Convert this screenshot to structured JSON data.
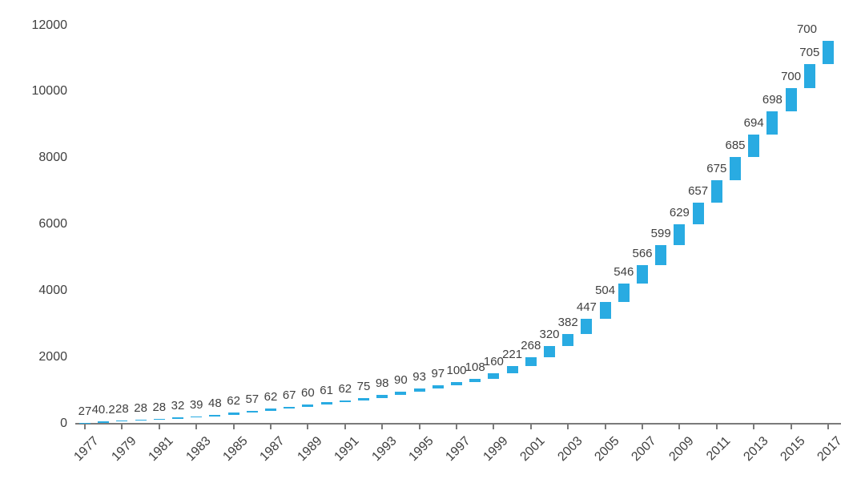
{
  "chart_data": {
    "type": "bar",
    "subtype": "waterfall-cumulative",
    "title": "",
    "xlabel": "",
    "ylabel": "",
    "years": [
      1977,
      1978,
      1979,
      1980,
      1981,
      1982,
      1983,
      1984,
      1985,
      1986,
      1987,
      1988,
      1989,
      1990,
      1991,
      1992,
      1993,
      1994,
      1995,
      1996,
      1997,
      1998,
      1999,
      2000,
      2001,
      2002,
      2003,
      2004,
      2005,
      2006,
      2007,
      2008,
      2009,
      2010,
      2011,
      2012,
      2013,
      2014,
      2015,
      2016,
      2017
    ],
    "values": [
      27,
      40.2,
      28,
      28,
      28,
      32,
      39,
      48,
      62,
      57,
      62,
      67,
      60,
      61,
      62,
      75,
      98,
      90,
      93,
      97,
      100,
      108,
      160,
      221,
      268,
      320,
      382,
      447,
      504,
      546,
      566,
      599,
      629,
      657,
      675,
      685,
      694,
      698,
      700,
      705,
      700
    ],
    "cumulative_total": 11518.2,
    "ylim": [
      0,
      12000
    ],
    "y_ticks": [
      0,
      2000,
      4000,
      6000,
      8000,
      10000,
      12000
    ],
    "x_tick_years": [
      1977,
      1979,
      1981,
      1983,
      1985,
      1987,
      1989,
      1991,
      1993,
      1995,
      1997,
      1999,
      2001,
      2003,
      2005,
      2007,
      2009,
      2011,
      2013,
      2015,
      2017
    ],
    "grid": "off",
    "legend": "none",
    "bar_color": "#29ABE2",
    "label_color": "#404040",
    "axis_color": "#7a7a7a"
  }
}
